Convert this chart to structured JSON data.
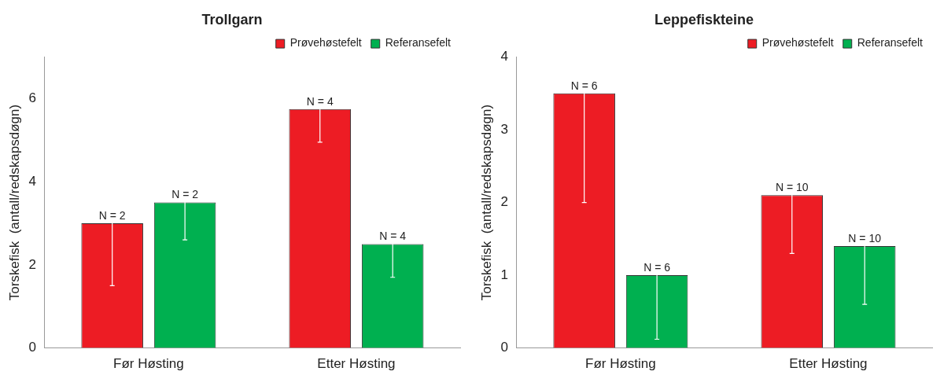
{
  "chart_data": [
    {
      "type": "bar",
      "title": "Trollgarn",
      "ylabel": "Torskefisk  (antall/redskapsdøgn)",
      "categories": [
        "Før Høsting",
        "Etter Høsting"
      ],
      "ylim": [
        0,
        7
      ],
      "yticks": [
        0,
        2,
        4,
        6
      ],
      "grid": false,
      "legend": "top right",
      "series": [
        {
          "name": "Prøvehøstefelt",
          "color": "#ed1c24",
          "values": [
            3.0,
            5.75
          ],
          "errors": [
            1.5,
            0.8
          ]
        },
        {
          "name": "Referansefelt",
          "color": "#00b050",
          "values": [
            3.5,
            2.5
          ],
          "errors": [
            0.9,
            0.8
          ]
        }
      ],
      "annotations": [
        "N = 2",
        "N = 2",
        "N = 4",
        "N = 4"
      ]
    },
    {
      "type": "bar",
      "title": "Leppefiskteine",
      "ylabel": "Torskefisk  (antall/redskapsdøgn)",
      "categories": [
        "Før Høsting",
        "Etter Høsting"
      ],
      "ylim": [
        0,
        4
      ],
      "yticks": [
        0,
        1,
        2,
        3,
        4
      ],
      "grid": false,
      "legend": "top right",
      "series": [
        {
          "name": "Prøvehøstefelt",
          "color": "#ed1c24",
          "values": [
            3.5,
            2.1
          ],
          "errors": [
            1.5,
            0.8
          ]
        },
        {
          "name": "Referansefelt",
          "color": "#00b050",
          "values": [
            1.0,
            1.4
          ],
          "errors": [
            0.88,
            0.8
          ]
        }
      ],
      "annotations": [
        "N = 6",
        "N = 6",
        "N = 10",
        "N = 10"
      ]
    }
  ]
}
